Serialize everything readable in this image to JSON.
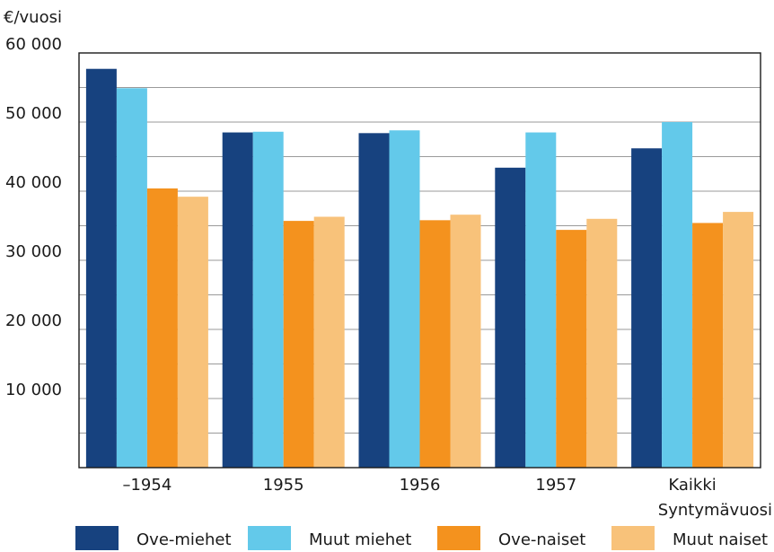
{
  "chart_data": {
    "type": "bar",
    "title": "",
    "ylabel": "€/vuosi",
    "xlabel": "Syntymävuosi",
    "categories": [
      [
        "–1954"
      ],
      [
        "1955"
      ],
      [
        "1956"
      ],
      [
        "1957"
      ],
      [
        "Kaikki"
      ]
    ],
    "series": [
      {
        "name": "Ove-miehet",
        "color": "#17427f",
        "values": [
          57700,
          48500,
          48400,
          43400,
          46200
        ]
      },
      {
        "name": "Muut miehet",
        "color": "#63c9ea",
        "values": [
          54900,
          48600,
          48800,
          48500,
          50000
        ]
      },
      {
        "name": "Ove-naiset",
        "color": "#f4921e",
        "values": [
          40400,
          35700,
          35800,
          34400,
          35400
        ]
      },
      {
        "name": "Muut naiset",
        "color": "#f8c27a",
        "values": [
          39200,
          36300,
          36600,
          36000,
          37000
        ]
      }
    ],
    "ylim": [
      0,
      60000
    ],
    "yticks": [
      10000,
      20000,
      30000,
      40000,
      50000,
      60000
    ],
    "ytick_labels": [
      "10 000",
      "20 000",
      "30 000",
      "40 000",
      "50 000",
      "60 000"
    ],
    "minor_gridlines": [
      5000,
      15000,
      25000,
      35000,
      45000,
      55000
    ],
    "grid": true,
    "legend_position": "bottom"
  }
}
